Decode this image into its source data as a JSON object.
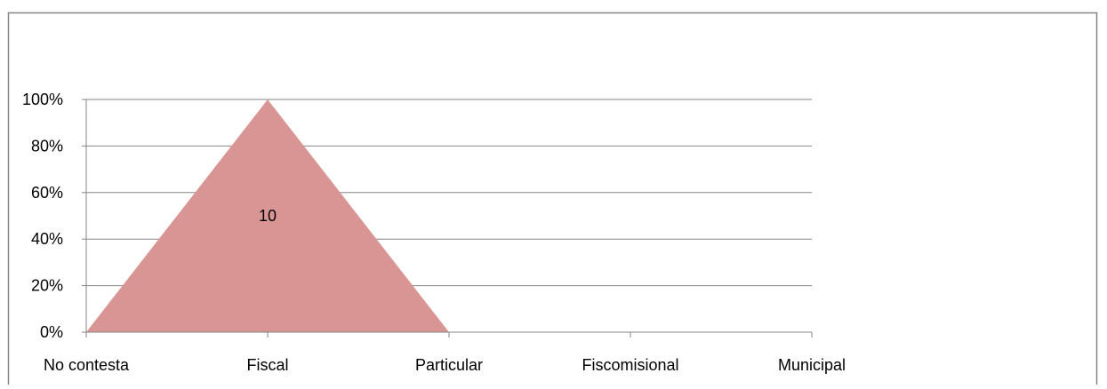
{
  "chart_data": {
    "type": "area",
    "title": "",
    "xlabel": "",
    "ylabel": "",
    "categories": [
      "No contesta",
      "Fiscal",
      "Particular",
      "Fiscomisional",
      "Municipal"
    ],
    "y_tick_labels": [
      "0%",
      "20%",
      "40%",
      "60%",
      "80%",
      "100%"
    ],
    "ylim": [
      0,
      1
    ],
    "grid": true,
    "legend": "none",
    "series": [
      {
        "values": [
          0,
          1,
          0,
          0,
          0
        ],
        "color": "#D99594",
        "data_labels": [
          "",
          "10",
          "",
          "",
          ""
        ]
      }
    ]
  }
}
